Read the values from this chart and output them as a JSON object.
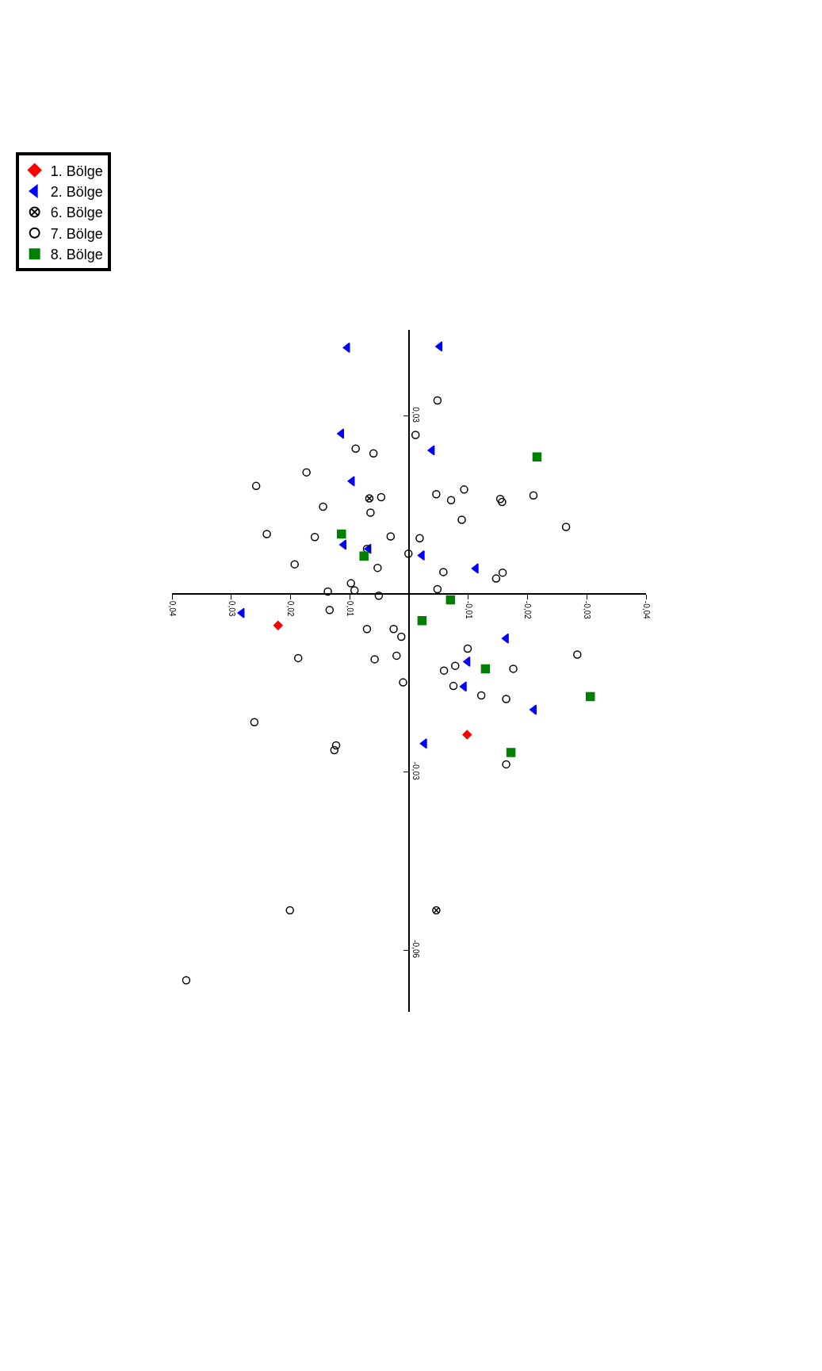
{
  "chart_data": {
    "type": "scatter",
    "xlim": [
      0.04,
      -0.04
    ],
    "xticks": [
      {
        "value": 0.04,
        "label": "0,04"
      },
      {
        "value": 0.03,
        "label": "0,03"
      },
      {
        "value": 0.02,
        "label": "0,02"
      },
      {
        "value": 0.01,
        "label": "0,01"
      },
      {
        "value": -0.01,
        "label": "-0,01"
      },
      {
        "value": -0.02,
        "label": "-0,02"
      },
      {
        "value": -0.03,
        "label": "-0,03"
      },
      {
        "value": -0.04,
        "label": "-0,04"
      }
    ],
    "ylim": [
      -0.0704,
      0.0445
    ],
    "yticks": [
      {
        "value": 0.03,
        "label": "0,03"
      },
      {
        "value": -0.03,
        "label": "-0,03"
      },
      {
        "value": -0.06,
        "label": "-0,06"
      }
    ],
    "legend": "top left",
    "series": [
      {
        "name": "1. Bölge",
        "color": "#ff0000",
        "marker": "diamond",
        "x": [
          0.0221,
          -0.0098
        ],
        "values": [
          -0.0053,
          -0.0237
        ]
      },
      {
        "name": "2. Bölge",
        "color": "#0000ff",
        "marker": "triangle",
        "x": [
          0.0104,
          -0.0052,
          0.0114,
          -0.0039,
          0.0096,
          0.011,
          0.0068,
          -0.0022,
          -0.0113,
          0.0282,
          -0.0164,
          -0.0099,
          -0.0093,
          -0.0211,
          -0.0026
        ],
        "values": [
          0.0415,
          0.0417,
          0.027,
          0.0242,
          0.019,
          0.0083,
          0.0076,
          0.0065,
          0.0043,
          -0.0032,
          -0.0075,
          -0.0114,
          -0.0156,
          -0.0195,
          -0.0252
        ]
      },
      {
        "name": "6. Bölge",
        "color": "#000000",
        "marker": "cross",
        "x": [
          0.0067,
          -0.0046
        ],
        "values": [
          0.0161,
          -0.0533
        ]
      },
      {
        "name": "7. Bölge",
        "color": "#000000",
        "marker": "circle",
        "x": [
          -0.0048,
          -0.0011,
          0.009,
          0.006,
          0.0173,
          0.0258,
          -0.0046,
          -0.0093,
          -0.0071,
          -0.0154,
          -0.0157,
          -0.021,
          0.0047,
          0.0145,
          0.0065,
          -0.0089,
          -0.0265,
          0.024,
          0.0159,
          0.0031,
          -0.0018,
          0.0071,
          0.0001,
          0.0193,
          0.0053,
          -0.0058,
          -0.0158,
          -0.0147,
          0.0098,
          0.0137,
          0.0092,
          -0.0048,
          0.0051,
          0.0134,
          0.0071,
          0.0026,
          0.0013,
          -0.0099,
          -0.0284,
          0.0187,
          0.0058,
          0.0021,
          -0.0078,
          -0.0059,
          -0.0176,
          0.001,
          -0.0075,
          -0.0122,
          -0.0164,
          0.0261,
          0.0123,
          0.0126,
          -0.0164,
          0.0201,
          0.0376
        ],
        "values": [
          0.0326,
          0.0268,
          0.0245,
          0.0237,
          0.0205,
          0.0182,
          0.0168,
          0.0176,
          0.0158,
          0.016,
          0.0155,
          0.0166,
          0.0163,
          0.0147,
          0.0137,
          0.0125,
          0.0113,
          0.0101,
          0.0096,
          0.0097,
          0.0094,
          0.0076,
          0.0068,
          0.005,
          0.0044,
          0.0037,
          0.0036,
          0.0026,
          0.0018,
          0.0004,
          0.0006,
          0.0008,
          -0.0003,
          -0.0027,
          -0.0059,
          -0.0059,
          -0.0072,
          -0.0092,
          -0.0102,
          -0.0108,
          -0.011,
          -0.0104,
          -0.0121,
          -0.0129,
          -0.0126,
          -0.0149,
          -0.0155,
          -0.0171,
          -0.0177,
          -0.0216,
          -0.0255,
          -0.0263,
          -0.0287,
          -0.0533,
          -0.0651
        ]
      },
      {
        "name": "8. Bölge",
        "color": "#008000",
        "marker": "square",
        "x": [
          -0.0216,
          0.0114,
          0.0076,
          -0.007,
          -0.0022,
          -0.0129,
          -0.0306,
          -0.0172
        ],
        "values": [
          0.0231,
          0.0101,
          0.0064,
          -0.001,
          -0.0045,
          -0.0126,
          -0.0173,
          -0.0267
        ]
      }
    ]
  }
}
